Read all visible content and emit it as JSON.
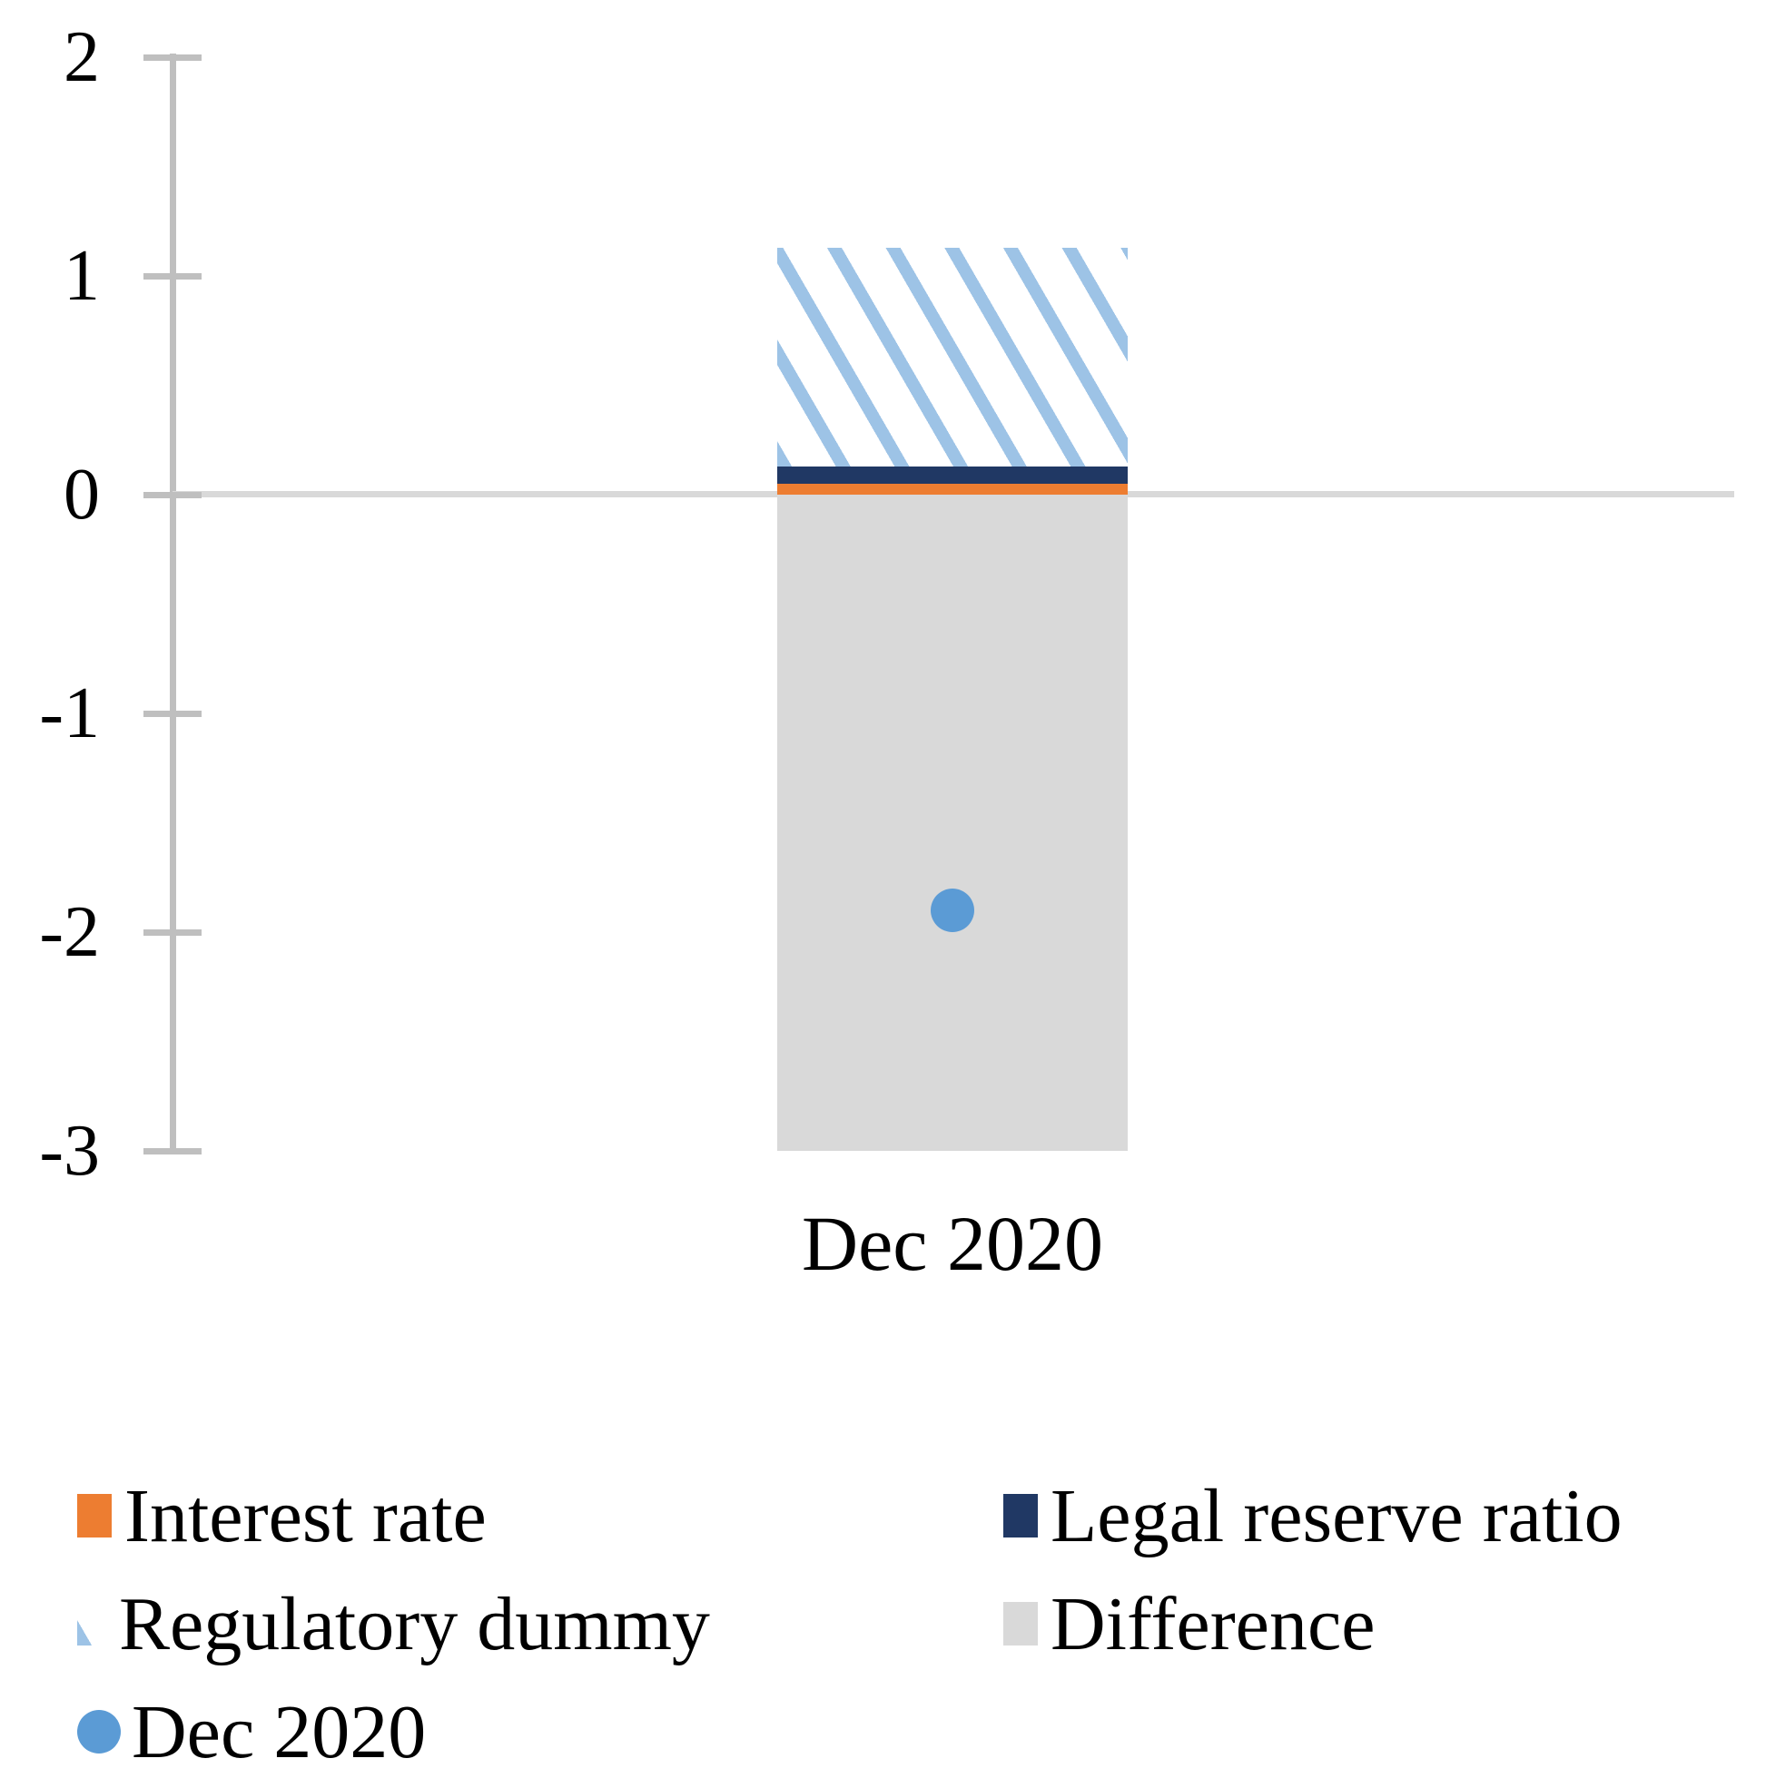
{
  "chart_data": {
    "type": "bar",
    "subtype": "stacked-bar-with-scatter-overlay",
    "title": "",
    "xlabel": "",
    "ylabel": "",
    "categories": [
      "Dec 2020"
    ],
    "series": [
      {
        "name": "Interest rate",
        "values": [
          0.05
        ],
        "color": "#ED7D31",
        "pattern": "solid"
      },
      {
        "name": "Legal reserve ratio",
        "values": [
          0.08
        ],
        "color": "#203864",
        "pattern": "solid"
      },
      {
        "name": "Regulatory dummy",
        "values": [
          1.0
        ],
        "color": "#9DC3E6",
        "pattern": "diagonal-stripes"
      },
      {
        "name": "Difference",
        "values": [
          -3.0
        ],
        "color": "#D9D9D9",
        "pattern": "solid"
      }
    ],
    "scatter_series": [
      {
        "name": "Dec 2020",
        "values": [
          -1.9
        ],
        "color": "#5B9BD5",
        "marker": "circle"
      }
    ],
    "ylim": [
      -3,
      2
    ],
    "yticks": [
      2,
      1,
      0,
      -1,
      -2,
      -3
    ],
    "ytick_labels": [
      "2",
      "1",
      "0",
      "-1",
      "-2",
      "-3"
    ],
    "grid": "zero-baseline-only",
    "legend_position": "bottom-two-columns"
  },
  "axis": {
    "category_label": "Dec 2020",
    "line_color": "#BFBFBF",
    "zero_line_color": "#D9D9D9"
  },
  "legend": {
    "items": [
      {
        "label": "Interest rate",
        "swatch": "square",
        "color": "#ED7D31"
      },
      {
        "label": "Legal reserve ratio",
        "swatch": "square",
        "color": "#203864"
      },
      {
        "label": "Regulatory dummy",
        "swatch": "striped",
        "color": "#9DC3E6"
      },
      {
        "label": "Difference",
        "swatch": "square",
        "color": "#D9D9D9"
      },
      {
        "label": "Dec 2020",
        "swatch": "circle",
        "color": "#5B9BD5"
      }
    ]
  }
}
